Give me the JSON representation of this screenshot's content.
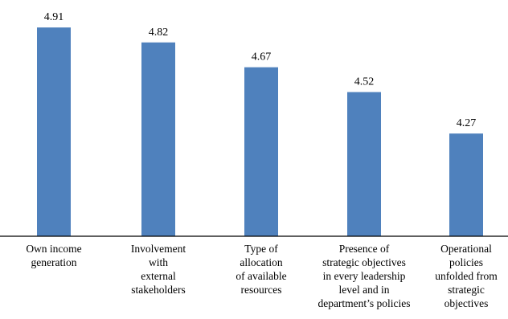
{
  "chart_data": {
    "type": "bar",
    "title": "",
    "xlabel": "",
    "ylabel": "",
    "categories": [
      [
        "Own income",
        "generation"
      ],
      [
        "Involvement",
        "with",
        "external",
        "stakeholders"
      ],
      [
        "Type of",
        "allocation",
        "of available",
        "resources"
      ],
      [
        "Presence of",
        "strategic objectives",
        "in every leadership",
        "level and in",
        "department’s policies"
      ],
      [
        "Operational",
        "policies",
        "unfolded from",
        "strategic",
        "objectives"
      ]
    ],
    "values": [
      4.91,
      4.82,
      4.67,
      4.52,
      4.27
    ],
    "value_labels": [
      "4.91",
      "4.82",
      "4.67",
      "4.52",
      "4.27"
    ],
    "ylim": [
      3.65,
      4.95
    ],
    "grid": false,
    "legend": "none",
    "bar_color": "#4f81bd",
    "axis_color": "#000000"
  }
}
